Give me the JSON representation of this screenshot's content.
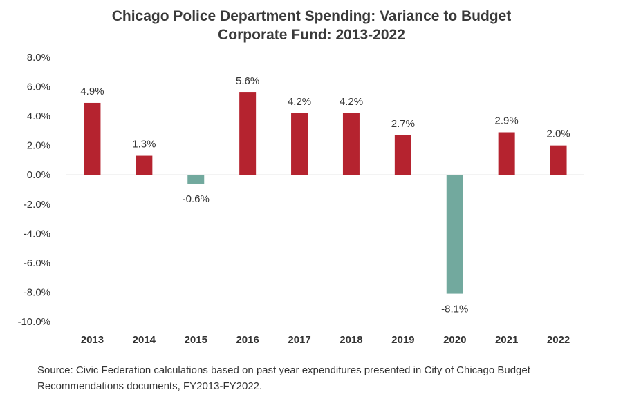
{
  "chart_data": {
    "type": "bar",
    "title": "Chicago Police Department Spending: Variance to Budget",
    "subtitle": "Corporate Fund: 2013-2022",
    "categories": [
      "2013",
      "2014",
      "2015",
      "2016",
      "2017",
      "2018",
      "2019",
      "2020",
      "2021",
      "2022"
    ],
    "values": [
      4.9,
      1.3,
      -0.6,
      5.6,
      4.2,
      4.2,
      2.7,
      -8.1,
      2.9,
      2.0
    ],
    "data_labels": [
      "4.9%",
      "1.3%",
      "-0.6%",
      "5.6%",
      "4.2%",
      "4.2%",
      "2.7%",
      "-8.1%",
      "2.9%",
      "2.0%"
    ],
    "y_ticks": [
      8,
      6,
      4,
      2,
      0,
      -2,
      -4,
      -6,
      -8,
      -10
    ],
    "y_tick_labels": [
      "8.0%",
      "6.0%",
      "4.0%",
      "2.0%",
      "0.0%",
      "-2.0%",
      "-4.0%",
      "-6.0%",
      "-8.0%",
      "-10.0%"
    ],
    "ylim": [
      -10,
      8
    ],
    "xlabel": "",
    "ylabel": "",
    "grid": false,
    "legend": "none",
    "colors": {
      "positive": "#b5232f",
      "negative": "#72a99e",
      "zero_line": "#d0d0d0"
    }
  },
  "source_note": "Source: Civic Federation calculations based on past year expenditures presented in City of Chicago Budget Recommendations documents, FY2013-FY2022."
}
